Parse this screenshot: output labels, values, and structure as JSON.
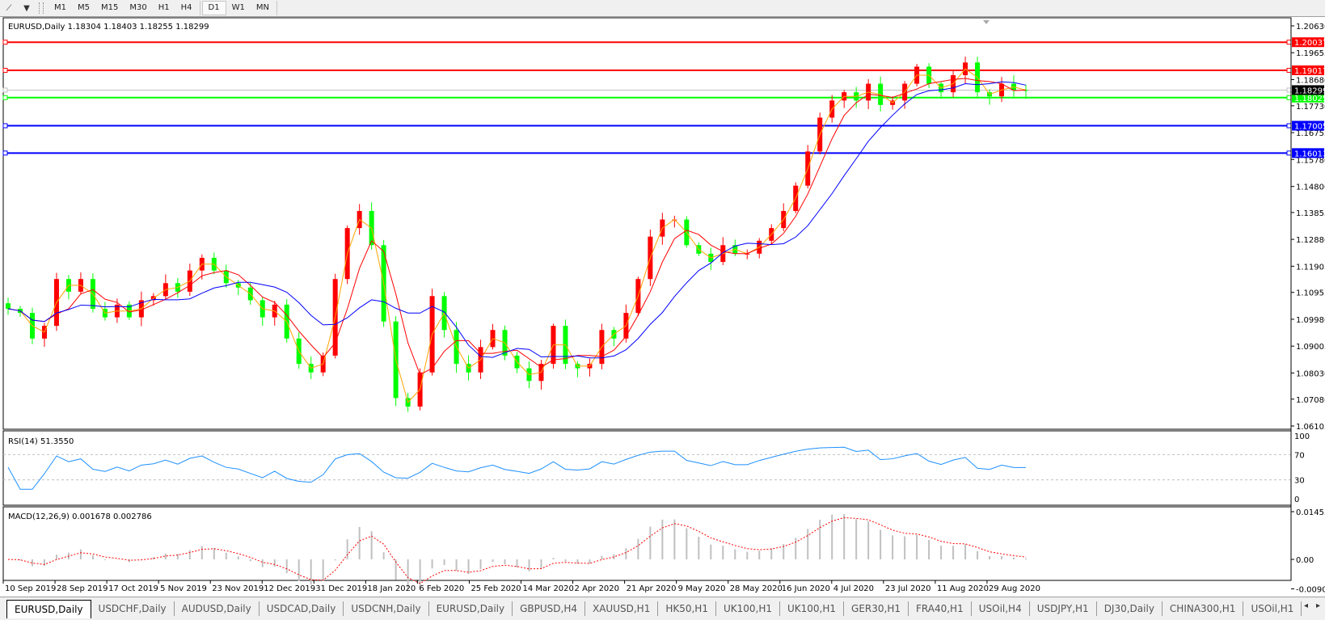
{
  "toolbar": {
    "icons": [
      "line-studies-icon",
      "dropdown-arrow-icon"
    ],
    "timeframes": [
      "M1",
      "M5",
      "M15",
      "M30",
      "H1",
      "H4",
      "D1",
      "W1",
      "MN"
    ],
    "active_timeframe": "D1"
  },
  "chart_header": "EURUSD,Daily  1.18304 1.18403 1.18255 1.18299",
  "colors": {
    "bull_candle": "#ff0000",
    "bear_candle": "#00ff00",
    "ma_fast": "#ffa500",
    "ma_mid": "#ff0000",
    "ma_slow": "#0000ff",
    "rsi_line": "#1e90ff",
    "macd_histogram": "#c0c0c0",
    "macd_signal": "#ff0000"
  },
  "chart_data": {
    "type": "candlestick",
    "symbol": "EURUSD",
    "timeframe": "Daily",
    "ohlc_last": {
      "open": 1.18304,
      "high": 1.18403,
      "low": 1.18255,
      "close": 1.18299
    },
    "ylim": [
      1.06105,
      1.2063
    ],
    "y_ticks": [
      "1.20630",
      "1.19655",
      "1.18680",
      "1.17730",
      "1.16755",
      "1.15780",
      "1.14800",
      "1.13855",
      "1.12880",
      "1.11905",
      "1.10955",
      "1.09980",
      "1.09005",
      "1.08030",
      "1.07080",
      "1.06105"
    ],
    "x_ticks": [
      "10 Sep 2019",
      "28 Sep 2019",
      "17 Oct 2019",
      "5 Nov 2019",
      "23 Nov 2019",
      "12 Dec 2019",
      "31 Dec 2019",
      "18 Jan 2020",
      "6 Feb 2020",
      "25 Feb 2020",
      "14 Mar 2020",
      "2 Apr 2020",
      "21 Apr 2020",
      "9 May 2020",
      "28 May 2020",
      "16 Jun 2020",
      "4 Jul 2020",
      "23 Jul 2020",
      "11 Aug 2020",
      "29 Aug 2020"
    ],
    "closes": [
      1.1036,
      1.1021,
      1.0928,
      1.0974,
      1.1144,
      1.1098,
      1.1144,
      1.1036,
      1.1005,
      1.1051,
      1.1005,
      1.1067,
      1.1082,
      1.1129,
      1.1098,
      1.1175,
      1.1221,
      1.1175,
      1.1129,
      1.1113,
      1.1067,
      1.1005,
      1.1051,
      1.0928,
      1.0836,
      1.0805,
      1.0866,
      1.1144,
      1.1329,
      1.1391,
      1.1267,
      1.099,
      1.0712,
      1.0681,
      1.0805,
      1.1082,
      1.0959,
      1.0836,
      1.0805,
      1.0897,
      1.0959,
      1.0866,
      1.082,
      1.0774,
      1.0836,
      1.0974,
      1.0836,
      1.082,
      1.0836,
      1.0959,
      1.0928,
      1.1021,
      1.1144,
      1.1298,
      1.136,
      1.136,
      1.1267,
      1.1236,
      1.1206,
      1.1267,
      1.1236,
      1.1236,
      1.1283,
      1.1329,
      1.1391,
      1.1483,
      1.1607,
      1.173,
      1.1792,
      1.1822,
      1.1792,
      1.1853,
      1.1776,
      1.1792,
      1.1853,
      1.1915,
      1.1853,
      1.1822,
      1.1884,
      1.193,
      1.1822,
      1.1807,
      1.1853,
      1.183,
      1.18299
    ],
    "horizontal_lines": [
      {
        "price": "1.20037",
        "color": "#ff0000"
      },
      {
        "price": "1.19017",
        "color": "#ff0000"
      },
      {
        "price": "1.18025",
        "color": "#00ff00"
      },
      {
        "price": "1.17005",
        "color": "#0000ff"
      },
      {
        "price": "1.16013",
        "color": "#0000ff"
      }
    ],
    "bid_line": {
      "price": "1.18299",
      "color": "#000000"
    },
    "rsi": {
      "label": "RSI(14) 51.3550",
      "levels": [
        30,
        70
      ],
      "y_ticks": [
        "100",
        "70",
        "30",
        "0"
      ],
      "ylim": [
        0,
        100
      ]
    },
    "macd": {
      "label": "MACD(12,26,9) 0.001678 0.002786",
      "y_ticks": [
        "0.014556",
        "0.00",
        "-0.009001"
      ],
      "ylim": [
        -0.009001,
        0.014556
      ]
    }
  },
  "tabs": [
    "EURUSD,Daily",
    "USDCHF,Daily",
    "AUDUSD,Daily",
    "USDCAD,Daily",
    "USDCNH,Daily",
    "EURUSD,Daily",
    "GBPUSD,H4",
    "XAUUSD,H1",
    "HK50,H1",
    "UK100,H1",
    "UK100,H1",
    "GER30,H1",
    "FRA40,H1",
    "USOil,H4",
    "USDJPY,H1",
    "DJ30,Daily",
    "CHINA300,H1",
    "USOil,H1"
  ],
  "active_tab": 0,
  "tab_nav": [
    "◂",
    "▸"
  ]
}
